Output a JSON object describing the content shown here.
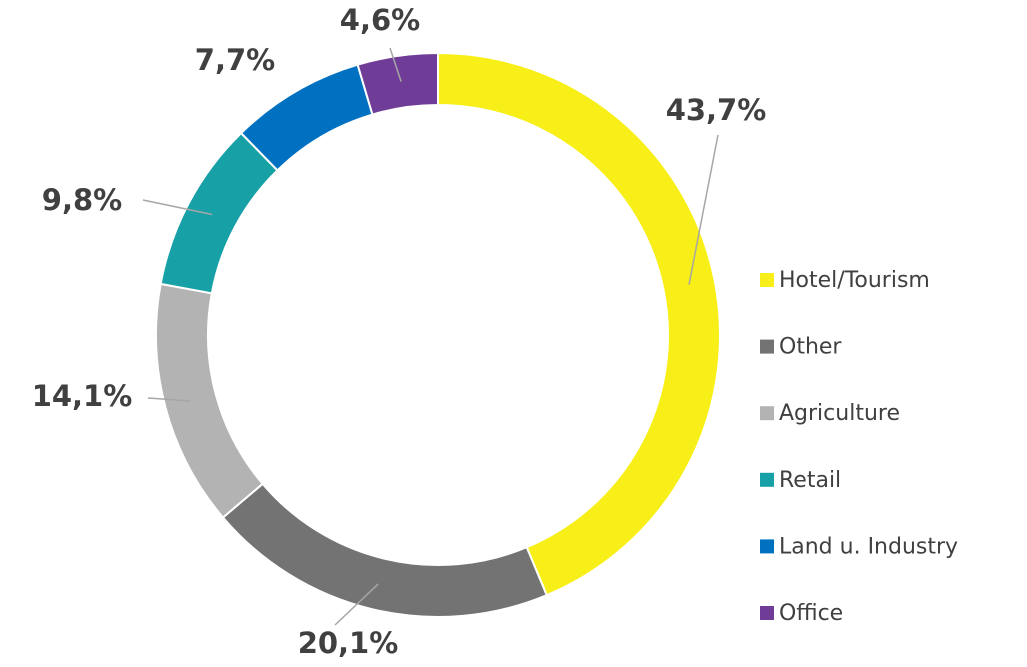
{
  "chart_data": {
    "type": "donut",
    "categories": [
      "Hotel/Tourism",
      "Other",
      "Agriculture",
      "Retail",
      "Land u. Industry",
      "Office"
    ],
    "values": [
      43.7,
      20.1,
      14.1,
      9.8,
      7.7,
      4.6
    ],
    "value_labels": [
      "43,7%",
      "20,1%",
      "14,1%",
      "9,8%",
      "7,7%",
      "4,6%"
    ],
    "colors": [
      "#f7ef17",
      "#737373",
      "#b3b3b3",
      "#17a0a6",
      "#0070c0",
      "#6f3d98"
    ],
    "legend": "right"
  }
}
